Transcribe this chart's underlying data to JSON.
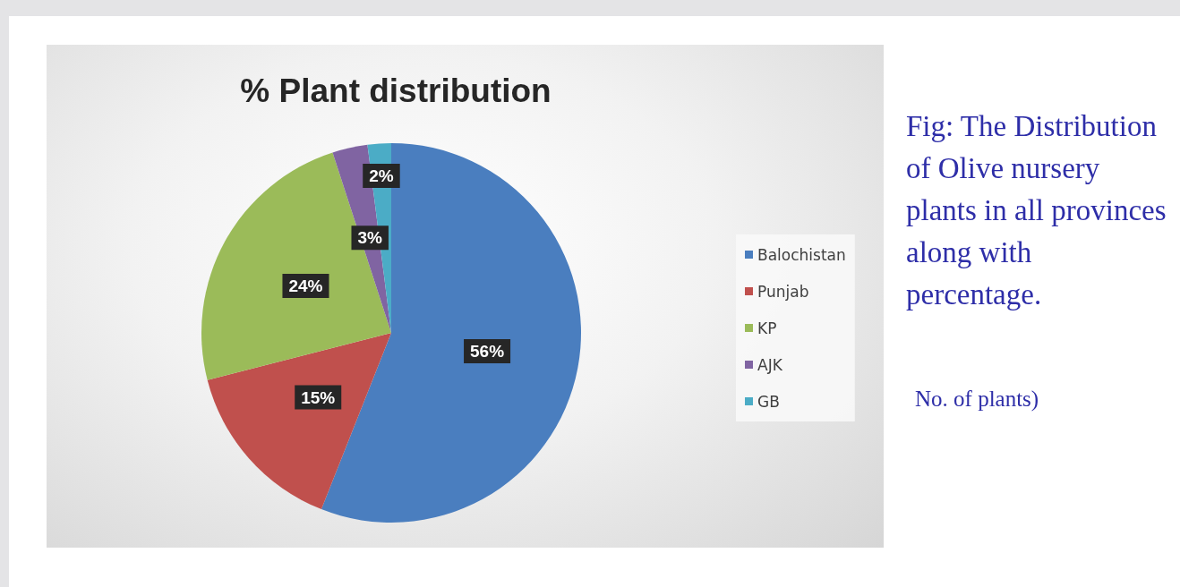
{
  "chart_data": {
    "type": "pie",
    "title": "% Plant distribution",
    "categories": [
      "Balochistan",
      "Punjab",
      "KP",
      "AJK",
      "GB"
    ],
    "values": [
      56,
      15,
      24,
      3,
      2
    ],
    "colors": [
      "#4a7ebf",
      "#c0504d",
      "#9bbb59",
      "#8064a2",
      "#4bacc6"
    ],
    "value_labels": [
      "56%",
      "15%",
      "24%",
      "3%",
      "2%"
    ],
    "legend": "right",
    "annotations": [
      "Fig: The Distribution of Olive nursery plants in all provinces along with percentage.",
      "No. of plants)"
    ]
  }
}
